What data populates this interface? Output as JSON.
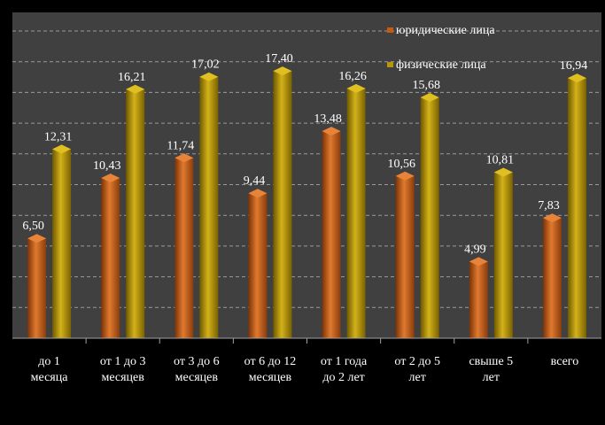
{
  "chart_data": {
    "type": "bar",
    "categories": [
      [
        "до 1",
        "месяца"
      ],
      [
        "от 1 до 3",
        "месяцев"
      ],
      [
        "от 3 до 6",
        "месяцев"
      ],
      [
        "от 6 до 12",
        "месяцев"
      ],
      [
        "от 1 года",
        "до 2 лет"
      ],
      [
        "от 2 до 5",
        "лет"
      ],
      [
        "свыше 5",
        "лет"
      ],
      [
        "всего",
        ""
      ]
    ],
    "series": [
      {
        "name": "юридические лица",
        "values": [
          6.5,
          10.43,
          11.74,
          9.44,
          13.48,
          10.56,
          4.99,
          7.83
        ],
        "labels": [
          "6,50",
          "10,43",
          "11,74",
          "9,44",
          "13,48",
          "10,56",
          "4,99",
          "7,83"
        ],
        "color": "#c55a11"
      },
      {
        "name": "физические лица",
        "values": [
          12.31,
          16.21,
          17.02,
          17.4,
          16.26,
          15.68,
          10.81,
          16.94
        ],
        "labels": [
          "12,31",
          "16,21",
          "17,02",
          "17,40",
          "16,26",
          "15,68",
          "10,81",
          "16,94"
        ],
        "color": "#b8960c"
      }
    ],
    "ylim": [
      0,
      20
    ],
    "grid": true,
    "legend_position": "top-right"
  }
}
